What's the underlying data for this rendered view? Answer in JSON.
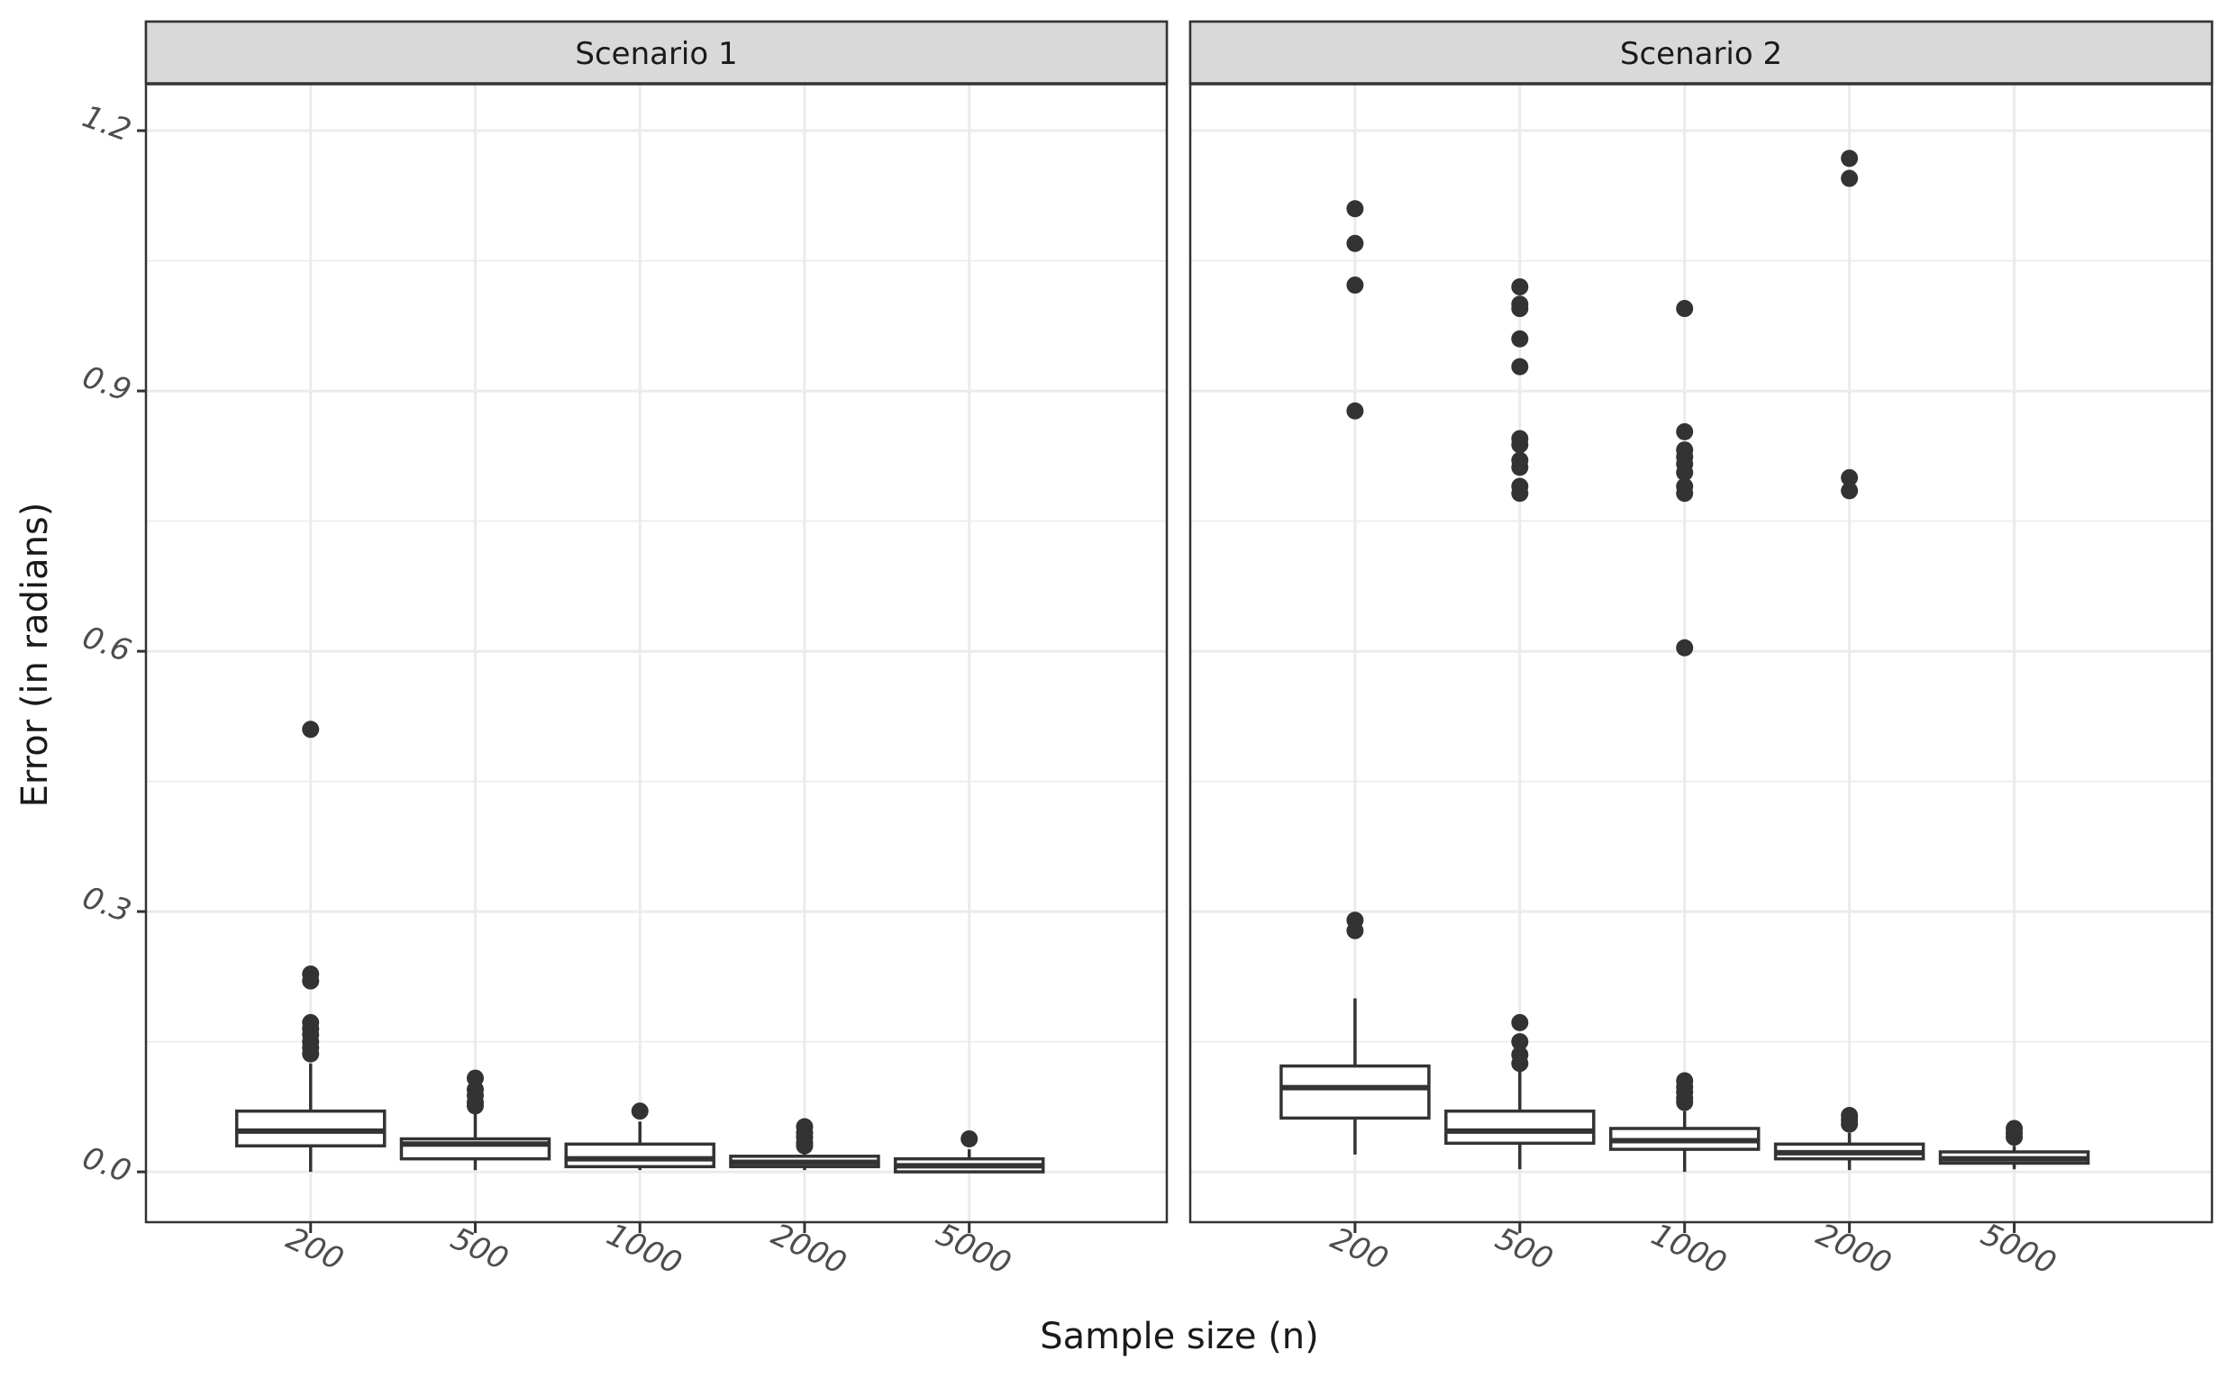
{
  "chart_data": {
    "type": "boxplot",
    "xlabel": "Sample size (n)",
    "ylabel": "Error (in radians)",
    "ylim": [
      -0.058,
      1.253
    ],
    "yticks": [
      {
        "value": 0.0,
        "label": "0.0"
      },
      {
        "value": 0.3,
        "label": "0.3"
      },
      {
        "value": 0.6,
        "label": "0.6"
      },
      {
        "value": 0.9,
        "label": "0.9"
      },
      {
        "value": 1.2,
        "label": "1.2"
      }
    ],
    "y_minor_ticks": [
      0.15,
      0.45,
      0.75,
      1.05
    ],
    "categories": [
      "200",
      "500",
      "1000",
      "2000",
      "5000"
    ],
    "grid": true,
    "colors": {
      "box_stroke": "#333333",
      "box_fill": "#ffffff",
      "point": "#333333",
      "grid": "#ebebeb",
      "panel_border": "#333333",
      "strip_fill": "#d9d9d9",
      "text": "#1a1a1a",
      "tick_text": "#4d4d4d"
    },
    "panels": [
      {
        "title": "Scenario 1",
        "boxes": [
          {
            "category": "200",
            "whisker_low": 0.0,
            "q1": 0.03,
            "median": 0.047,
            "q3": 0.07,
            "whisker_high": 0.125,
            "outliers": [
              0.51,
              0.228,
              0.22,
              0.172,
              0.165,
              0.158,
              0.15,
              0.143,
              0.136
            ]
          },
          {
            "category": "500",
            "whisker_low": 0.002,
            "q1": 0.015,
            "median": 0.032,
            "q3": 0.038,
            "whisker_high": 0.07,
            "outliers": [
              0.108,
              0.095,
              0.088,
              0.08,
              0.076
            ]
          },
          {
            "category": "1000",
            "whisker_low": 0.002,
            "q1": 0.006,
            "median": 0.015,
            "q3": 0.032,
            "whisker_high": 0.058,
            "outliers": [
              0.07
            ]
          },
          {
            "category": "2000",
            "whisker_low": 0.002,
            "q1": 0.006,
            "median": 0.011,
            "q3": 0.018,
            "whisker_high": 0.024,
            "outliers": [
              0.052,
              0.045,
              0.04,
              0.034,
              0.03
            ]
          },
          {
            "category": "5000",
            "whisker_low": 0.0,
            "q1": 0.0,
            "median": 0.007,
            "q3": 0.015,
            "whisker_high": 0.026,
            "outliers": [
              0.038
            ]
          }
        ]
      },
      {
        "title": "Scenario 2",
        "boxes": [
          {
            "category": "200",
            "whisker_low": 0.02,
            "q1": 0.062,
            "median": 0.097,
            "q3": 0.122,
            "whisker_high": 0.2,
            "outliers": [
              1.11,
              1.07,
              1.022,
              0.877,
              0.29,
              0.278
            ]
          },
          {
            "category": "500",
            "whisker_low": 0.003,
            "q1": 0.033,
            "median": 0.047,
            "q3": 0.07,
            "whisker_high": 0.12,
            "outliers": [
              1.02,
              1.0,
              0.995,
              0.96,
              0.928,
              0.845,
              0.838,
              0.82,
              0.812,
              0.79,
              0.782,
              0.172,
              0.15,
              0.135,
              0.125
            ]
          },
          {
            "category": "1000",
            "whisker_low": 0.0,
            "q1": 0.026,
            "median": 0.036,
            "q3": 0.05,
            "whisker_high": 0.07,
            "outliers": [
              0.995,
              0.853,
              0.832,
              0.824,
              0.816,
              0.806,
              0.79,
              0.782,
              0.604,
              0.105,
              0.098,
              0.092,
              0.085,
              0.08
            ]
          },
          {
            "category": "2000",
            "whisker_low": 0.002,
            "q1": 0.015,
            "median": 0.022,
            "q3": 0.032,
            "whisker_high": 0.045,
            "outliers": [
              1.168,
              1.145,
              0.8,
              0.785,
              0.065,
              0.06,
              0.055
            ]
          },
          {
            "category": "5000",
            "whisker_low": 0.003,
            "q1": 0.01,
            "median": 0.015,
            "q3": 0.023,
            "whisker_high": 0.03,
            "outliers": [
              0.05,
              0.045,
              0.04
            ]
          }
        ]
      }
    ]
  }
}
